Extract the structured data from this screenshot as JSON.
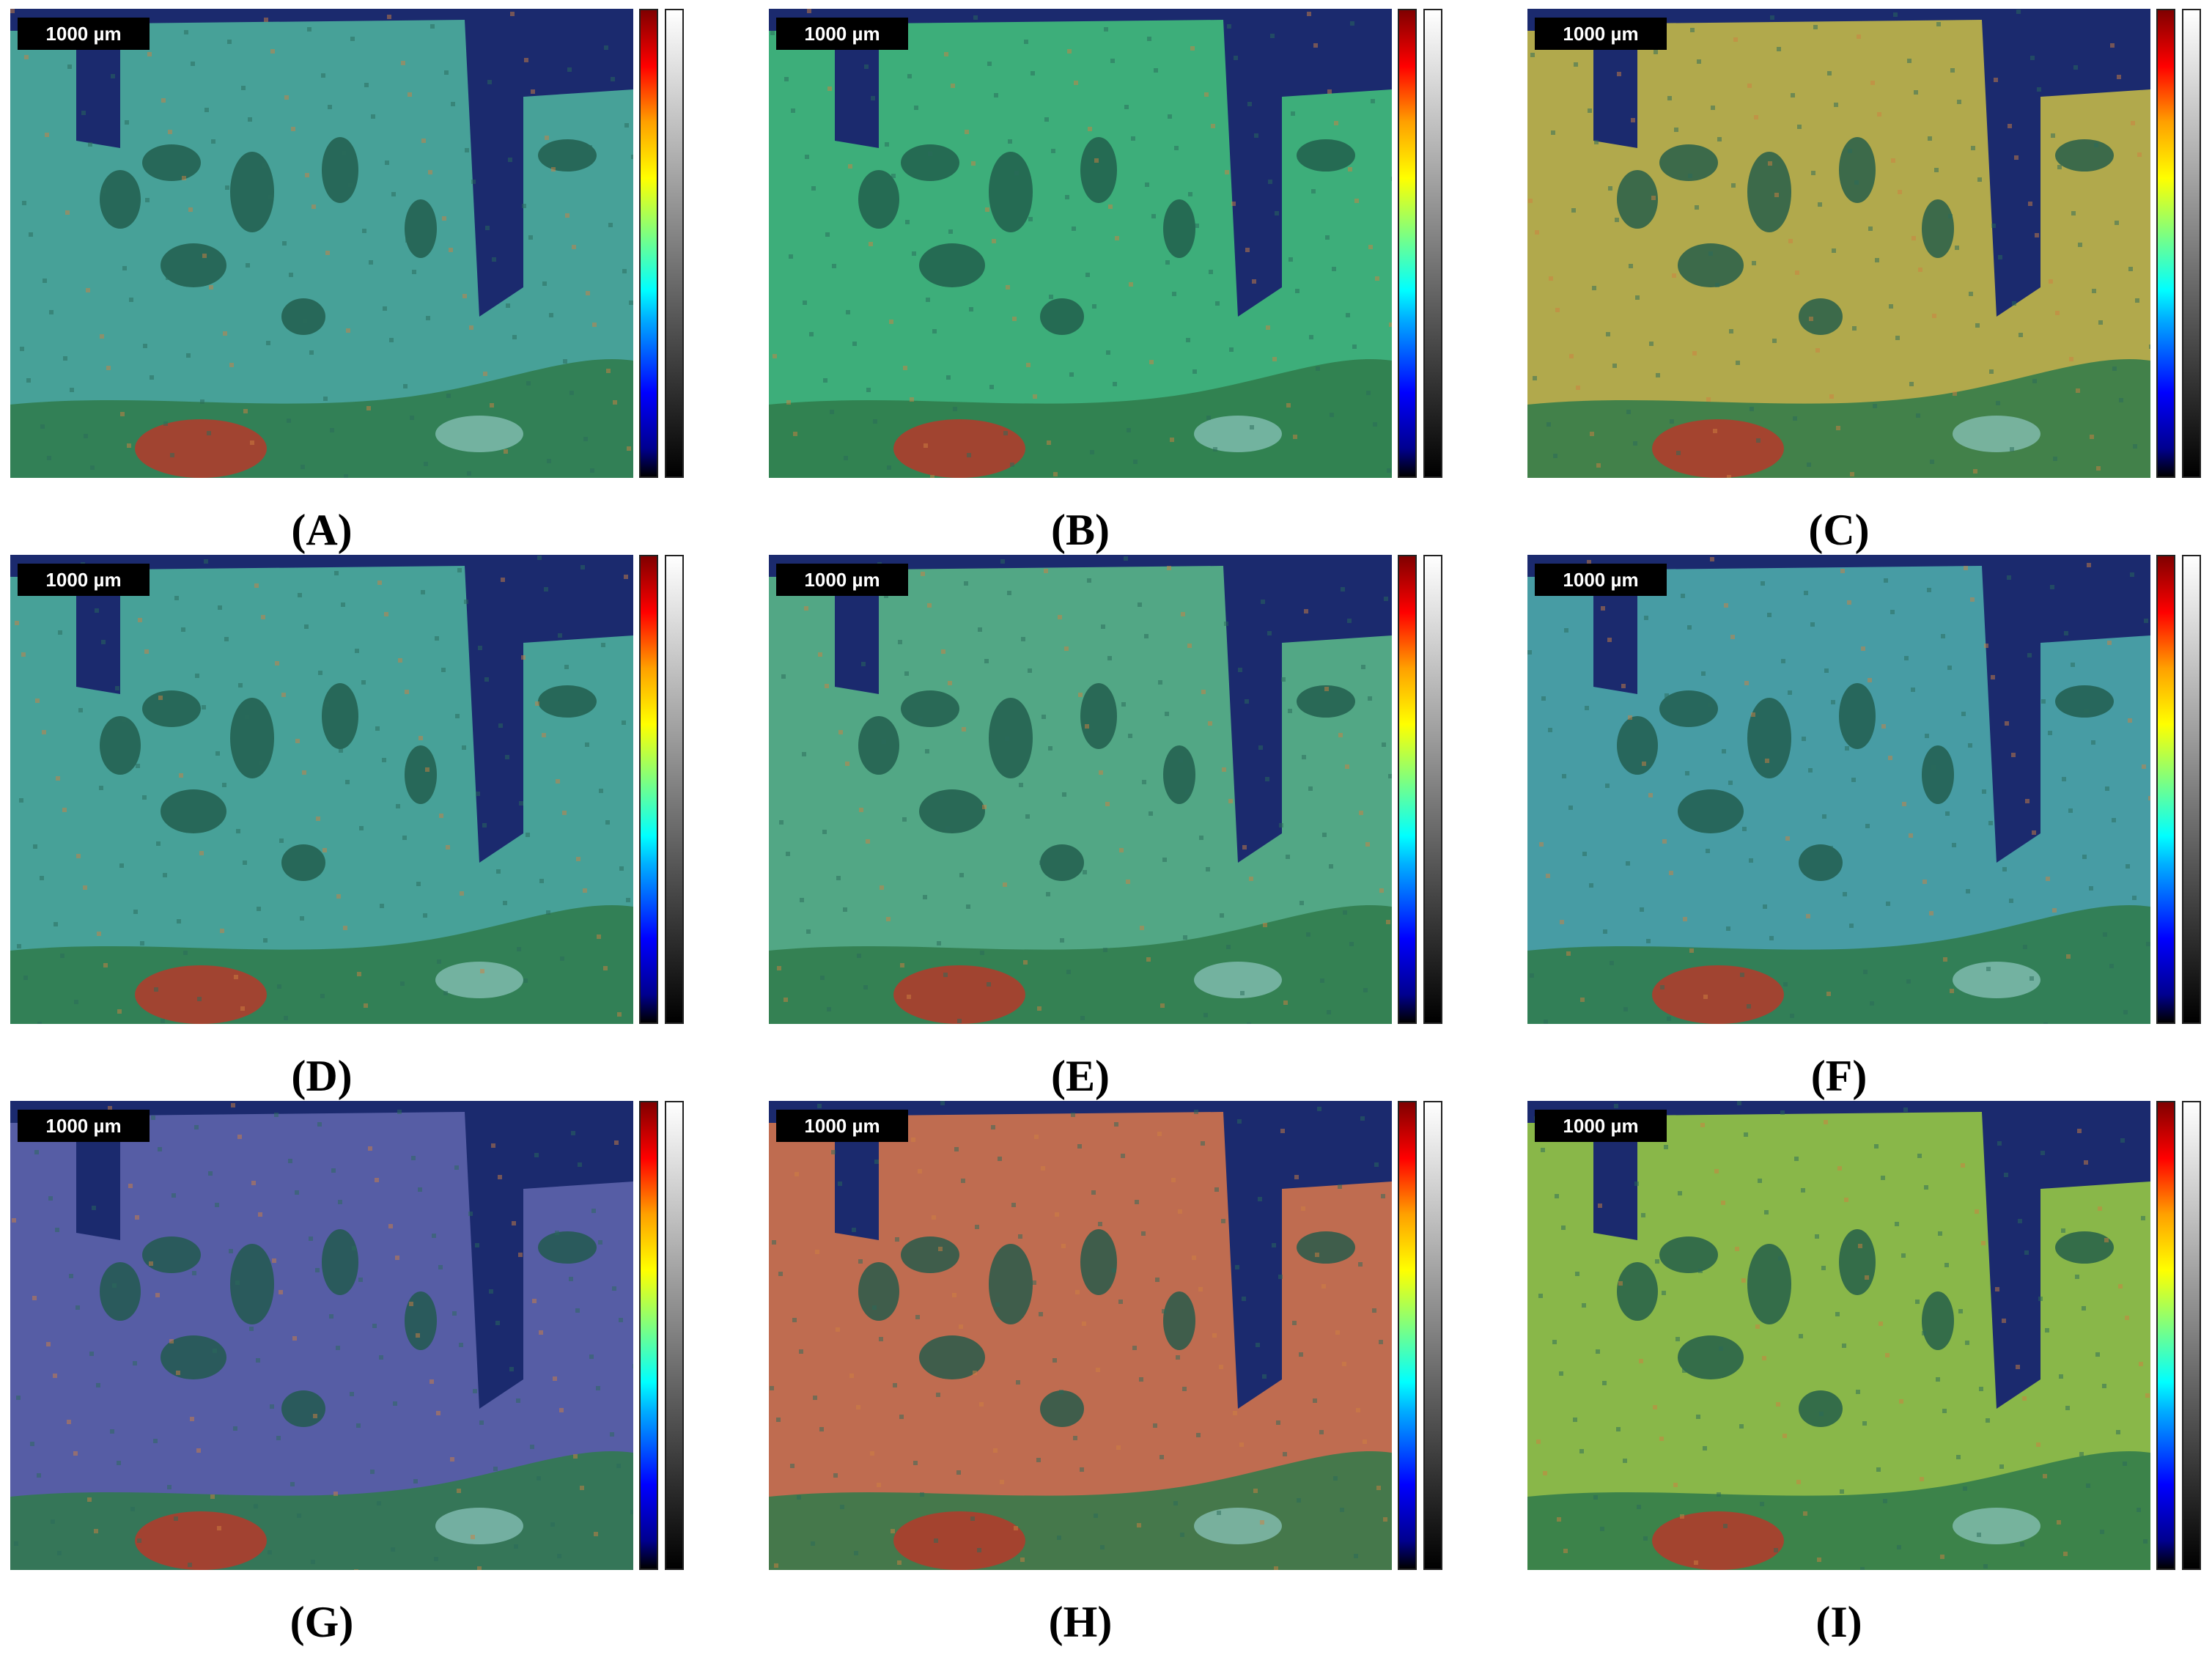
{
  "scale_label": "1000 µm",
  "panels": [
    {
      "label": "(A)",
      "tint": "#4aa89a"
    },
    {
      "label": "(B)",
      "tint": "#3fb57a"
    },
    {
      "label": "(C)",
      "tint": "#b9b04a"
    },
    {
      "label": "(D)",
      "tint": "#4aa89a"
    },
    {
      "label": "(E)",
      "tint": "#55ae86"
    },
    {
      "label": "(F)",
      "tint": "#4aa2a6"
    },
    {
      "label": "(G)",
      "tint": "#5a60a8"
    },
    {
      "label": "(H)",
      "tint": "#c8704e"
    },
    {
      "label": "(I)",
      "tint": "#8fbf47"
    }
  ]
}
